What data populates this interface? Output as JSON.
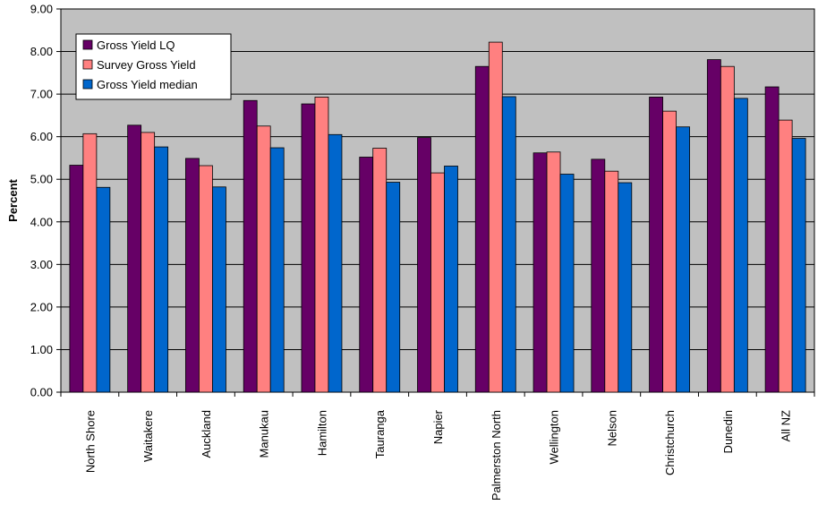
{
  "chart_data": {
    "type": "bar",
    "ylabel": "Percent",
    "ylim": [
      0,
      9
    ],
    "ytick_step": 1,
    "ytick_labels": [
      "0.00",
      "1.00",
      "2.00",
      "3.00",
      "4.00",
      "5.00",
      "6.00",
      "7.00",
      "8.00",
      "9.00"
    ],
    "grid": true,
    "plot_background": "#c0c0c0",
    "legend_position": "top-left",
    "categories": [
      "North Shore",
      "Waitakere",
      "Auckland",
      "Manukau",
      "Hamilton",
      "Tauranga",
      "Napier",
      "Palmerston North",
      "Wellington",
      "Nelson",
      "Christchurch",
      "Dunedin",
      "All NZ"
    ],
    "series": [
      {
        "name": "Gross Yield LQ",
        "color": "#660066",
        "values": [
          5.33,
          6.27,
          5.49,
          6.85,
          6.77,
          5.52,
          5.98,
          7.65,
          5.62,
          5.47,
          6.93,
          7.81,
          7.17
        ]
      },
      {
        "name": "Survey Gross Yield",
        "color": "#ff8080",
        "values": [
          6.07,
          6.1,
          5.32,
          6.25,
          6.93,
          5.73,
          5.15,
          8.22,
          5.64,
          5.19,
          6.6,
          7.65,
          6.39
        ]
      },
      {
        "name": "Gross Yield median",
        "color": "#0066cc",
        "values": [
          4.81,
          5.76,
          4.82,
          5.74,
          6.05,
          4.93,
          5.31,
          6.94,
          5.12,
          4.92,
          6.23,
          6.9,
          5.96
        ]
      }
    ]
  }
}
